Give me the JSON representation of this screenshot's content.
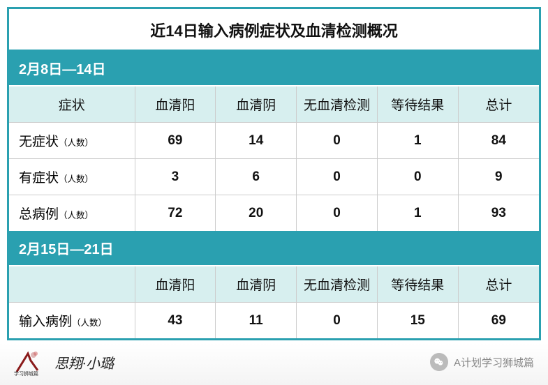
{
  "colors": {
    "border": "#2aa0b0",
    "subhead_bg": "#2aa0b0",
    "header_cell_bg": "#d7efef",
    "title_color": "#111111",
    "text_color": "#111111"
  },
  "title": {
    "text": "近14日输入病例症状及血清检测概况",
    "fontsize": 22
  },
  "section1": {
    "date_range": "2月8日—14日",
    "date_fontsize": 20,
    "columns": [
      "症状",
      "血清阳",
      "血清阴",
      "无血清检测",
      "等待结果",
      "总计"
    ],
    "header_fontsize": 19,
    "row_label_main_fontsize": 19,
    "row_label_small_fontsize": 14,
    "cell_fontsize": 19,
    "people_suffix": "（人数）",
    "rows": [
      {
        "label": "无症状",
        "values": [
          "69",
          "14",
          "0",
          "1",
          "84"
        ],
        "red_cols": [
          1
        ]
      },
      {
        "label": "有症状",
        "values": [
          "3",
          "6",
          "0",
          "0",
          "9"
        ],
        "red_cols": [
          0,
          1
        ]
      },
      {
        "label": "总病例",
        "values": [
          "72",
          "20",
          "0",
          "1",
          "93"
        ],
        "red_cols": [
          1
        ]
      }
    ]
  },
  "section2": {
    "date_range": "2月15日—21日",
    "columns": [
      "",
      "血清阳",
      "血清阴",
      "无血清检测",
      "等待结果",
      "总计"
    ],
    "rows": [
      {
        "label": "输入病例",
        "values": [
          "43",
          "11",
          "0",
          "15",
          "69"
        ],
        "red_cols": [
          1
        ]
      }
    ]
  },
  "footer": {
    "signature": "思翔·小璐",
    "signature_fontsize": 20,
    "right_text": "A计划学习狮城篇",
    "right_fontsize": 15,
    "logo_tag": "学习狮城篇"
  }
}
